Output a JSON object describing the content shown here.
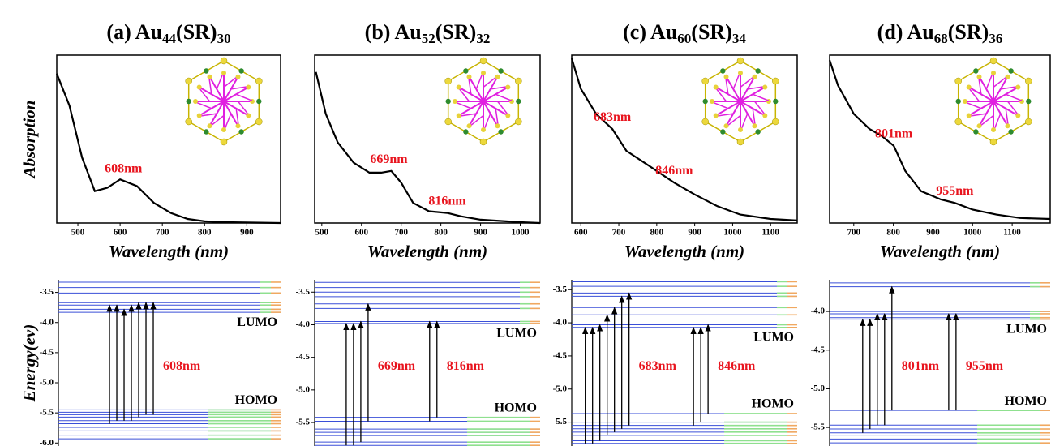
{
  "chart_data": [
    {
      "type": "line",
      "title": "(a)  Au44(SR)30",
      "x_label": "Wavelength (nm)",
      "y_label": "Absorption",
      "xlim": [
        450,
        980
      ],
      "ylim": [
        0,
        100
      ],
      "xticks": [
        500,
        600,
        700,
        800,
        900
      ],
      "x": [
        450,
        480,
        510,
        540,
        570,
        600,
        640,
        680,
        720,
        760,
        800,
        850,
        900,
        980
      ],
      "values": [
        89,
        70,
        39,
        19,
        21,
        26,
        22,
        12,
        6,
        2.4,
        1,
        0.5,
        0.3,
        0
      ],
      "color": "#000000",
      "label_color": "#e8141e",
      "peaks": [
        {
          "label": "608nm",
          "x": 608
        }
      ]
    },
    {
      "type": "line",
      "title": "(b)  Au52(SR)32",
      "x_label": "Wavelength (nm)",
      "xlim": [
        482,
        1050
      ],
      "ylim": [
        0,
        100
      ],
      "xticks": [
        500,
        600,
        700,
        800,
        900,
        1000
      ],
      "x": [
        485,
        510,
        540,
        580,
        620,
        650,
        675,
        700,
        730,
        770,
        816,
        850,
        900,
        1000,
        1050
      ],
      "values": [
        90,
        65,
        48,
        36,
        30,
        30,
        31,
        24,
        12,
        7,
        6,
        4,
        2,
        0.5,
        0
      ],
      "color": "#000000",
      "label_color": "#e8141e",
      "peaks": [
        {
          "label": "669nm",
          "x": 669
        },
        {
          "label": "816nm",
          "x": 816
        }
      ]
    },
    {
      "type": "line",
      "title": "(c)  Au60(SR)34",
      "x_label": "Wavelength (nm)",
      "xlim": [
        576,
        1170
      ],
      "ylim": [
        0,
        100
      ],
      "xticks": [
        600,
        700,
        800,
        900,
        1000,
        1100
      ],
      "x": [
        576,
        600,
        640,
        683,
        720,
        780,
        846,
        900,
        960,
        1020,
        1100,
        1170
      ],
      "values": [
        98,
        80,
        65,
        56,
        43,
        34,
        24,
        17,
        10,
        5,
        2.4,
        1.5
      ],
      "color": "#000000",
      "label_color": "#e8141e",
      "peaks": [
        {
          "label": "683nm",
          "x": 683
        },
        {
          "label": "846nm",
          "x": 846
        }
      ]
    },
    {
      "type": "line",
      "title": "(d)  Au68(SR)36",
      "x_label": "Wavelength (nm)",
      "xlim": [
        639,
        1196
      ],
      "ylim": [
        0,
        100
      ],
      "xticks": [
        700,
        800,
        900,
        1000,
        1100
      ],
      "x": [
        639,
        660,
        700,
        740,
        770,
        801,
        830,
        870,
        920,
        955,
        1000,
        1060,
        1120,
        1196
      ],
      "values": [
        97,
        82,
        65,
        56,
        52,
        46,
        31,
        19,
        14,
        12,
        8,
        5,
        3,
        2.4
      ],
      "color": "#000000",
      "label_color": "#e8141e",
      "peaks": [
        {
          "label": "801nm",
          "x": 801
        },
        {
          "label": "955nm",
          "x": 955
        }
      ]
    },
    {
      "type": "energy-levels",
      "y_label": "Energy(ev)",
      "ylim": [
        -6.05,
        -3.29
      ],
      "yticks": [
        -3.5,
        {
          "value": -4,
          "label": "-4.0"
        },
        -4.5,
        {
          "value": -5,
          "label": "-5.0"
        },
        -5.5,
        {
          "value": -6,
          "label": "-6.0"
        }
      ],
      "unoccupied": [
        -3.33,
        -3.42,
        -3.51,
        -3.67,
        -3.71,
        -3.78,
        -3.83
      ],
      "occupied": [
        -5.45,
        -5.49,
        -5.53,
        -5.57,
        -5.63,
        -5.68,
        -5.74,
        -5.8,
        -5.87,
        -5.93
      ],
      "lumo_label": "LUMO",
      "homo_label": "HOMO",
      "level_color": "#3a4fd8",
      "arrow_color": "#000000",
      "label_color": "#e8141e",
      "groups": [
        {
          "label": "608nm",
          "transitions": [
            {
              "from": -5.68,
              "to": -3.71
            },
            {
              "from": -5.63,
              "to": -3.71
            },
            {
              "from": -5.63,
              "to": -3.78
            },
            {
              "from": -5.63,
              "to": -3.71
            },
            {
              "from": -5.57,
              "to": -3.67
            },
            {
              "from": -5.53,
              "to": -3.67
            },
            {
              "from": -5.53,
              "to": -3.67
            }
          ]
        }
      ]
    },
    {
      "type": "energy-levels",
      "ylim": [
        -5.86,
        -3.31
      ],
      "yticks": [
        -3.5,
        {
          "value": -4,
          "label": "-4.0"
        },
        -4.5,
        {
          "value": -5,
          "label": "-5.0"
        },
        -5.5
      ],
      "unoccupied": [
        -3.35,
        -3.43,
        -3.5,
        -3.57,
        -3.68,
        -3.75,
        -3.95,
        -3.98
      ],
      "occupied": [
        -5.42,
        -5.48,
        -5.6,
        -5.65,
        -5.7,
        -5.8,
        -5.85
      ],
      "lumo_label": "LUMO",
      "homo_label": "HOMO",
      "level_color": "#3a4fd8",
      "arrow_color": "#000000",
      "label_color": "#e8141e",
      "groups": [
        {
          "label": "669nm",
          "transitions": [
            {
              "from": -5.85,
              "to": -3.98
            },
            {
              "from": -5.85,
              "to": -3.98
            },
            {
              "from": -5.8,
              "to": -3.95
            },
            {
              "from": -5.48,
              "to": -3.68
            }
          ]
        },
        {
          "label": "816nm",
          "transitions": [
            {
              "from": -5.48,
              "to": -3.95
            },
            {
              "from": -5.42,
              "to": -3.95
            }
          ]
        }
      ]
    },
    {
      "type": "energy-levels",
      "ylim": [
        -5.86,
        -3.35
      ],
      "yticks": [
        -3.5,
        {
          "value": -4,
          "label": "-4.0"
        },
        -4.5,
        {
          "value": -5,
          "label": "-5.0"
        },
        -5.5
      ],
      "unoccupied": [
        -3.38,
        -3.45,
        -3.55,
        -3.6,
        -3.77,
        -3.88,
        -4.03,
        -4.07
      ],
      "occupied": [
        -5.37,
        -5.5,
        -5.55,
        -5.6,
        -5.65,
        -5.7,
        -5.78,
        -5.82
      ],
      "lumo_label": "LUMO",
      "homo_label": "HOMO",
      "level_color": "#3a4fd8",
      "arrow_color": "#000000",
      "label_color": "#e8141e",
      "groups": [
        {
          "label": "683nm",
          "transitions": [
            {
              "from": -5.82,
              "to": -4.07
            },
            {
              "from": -5.82,
              "to": -4.07
            },
            {
              "from": -5.78,
              "to": -4.03
            },
            {
              "from": -5.7,
              "to": -3.88
            },
            {
              "from": -5.65,
              "to": -3.77
            },
            {
              "from": -5.6,
              "to": -3.6
            },
            {
              "from": -5.55,
              "to": -3.55
            }
          ]
        },
        {
          "label": "846nm",
          "transitions": [
            {
              "from": -5.55,
              "to": -4.07
            },
            {
              "from": -5.5,
              "to": -4.07
            },
            {
              "from": -5.37,
              "to": -4.03
            }
          ]
        }
      ]
    },
    {
      "type": "energy-levels",
      "ylim": [
        -5.74,
        -3.59
      ],
      "yticks": [
        {
          "value": -4,
          "label": "-4.0"
        },
        -4.5,
        {
          "value": -5,
          "label": "-5.0"
        },
        -5.5
      ],
      "unoccupied": [
        -3.63,
        -3.68,
        -4.0,
        -4.03,
        -4.08,
        -4.1
      ],
      "occupied": [
        -5.28,
        -5.47,
        -5.52,
        -5.57,
        -5.6,
        -5.65,
        -5.7
      ],
      "lumo_label": "LUMO",
      "homo_label": "HOMO",
      "level_color": "#3a4fd8",
      "arrow_color": "#000000",
      "label_color": "#e8141e",
      "groups": [
        {
          "label": "801nm",
          "transitions": [
            {
              "from": -5.57,
              "to": -4.1
            },
            {
              "from": -5.52,
              "to": -4.1
            },
            {
              "from": -5.47,
              "to": -4.03
            },
            {
              "from": -5.47,
              "to": -4.03
            },
            {
              "from": -5.28,
              "to": -3.68
            }
          ]
        },
        {
          "label": "955nm",
          "transitions": [
            {
              "from": -5.28,
              "to": -4.03
            },
            {
              "from": -5.28,
              "to": -4.03
            }
          ]
        }
      ]
    }
  ]
}
